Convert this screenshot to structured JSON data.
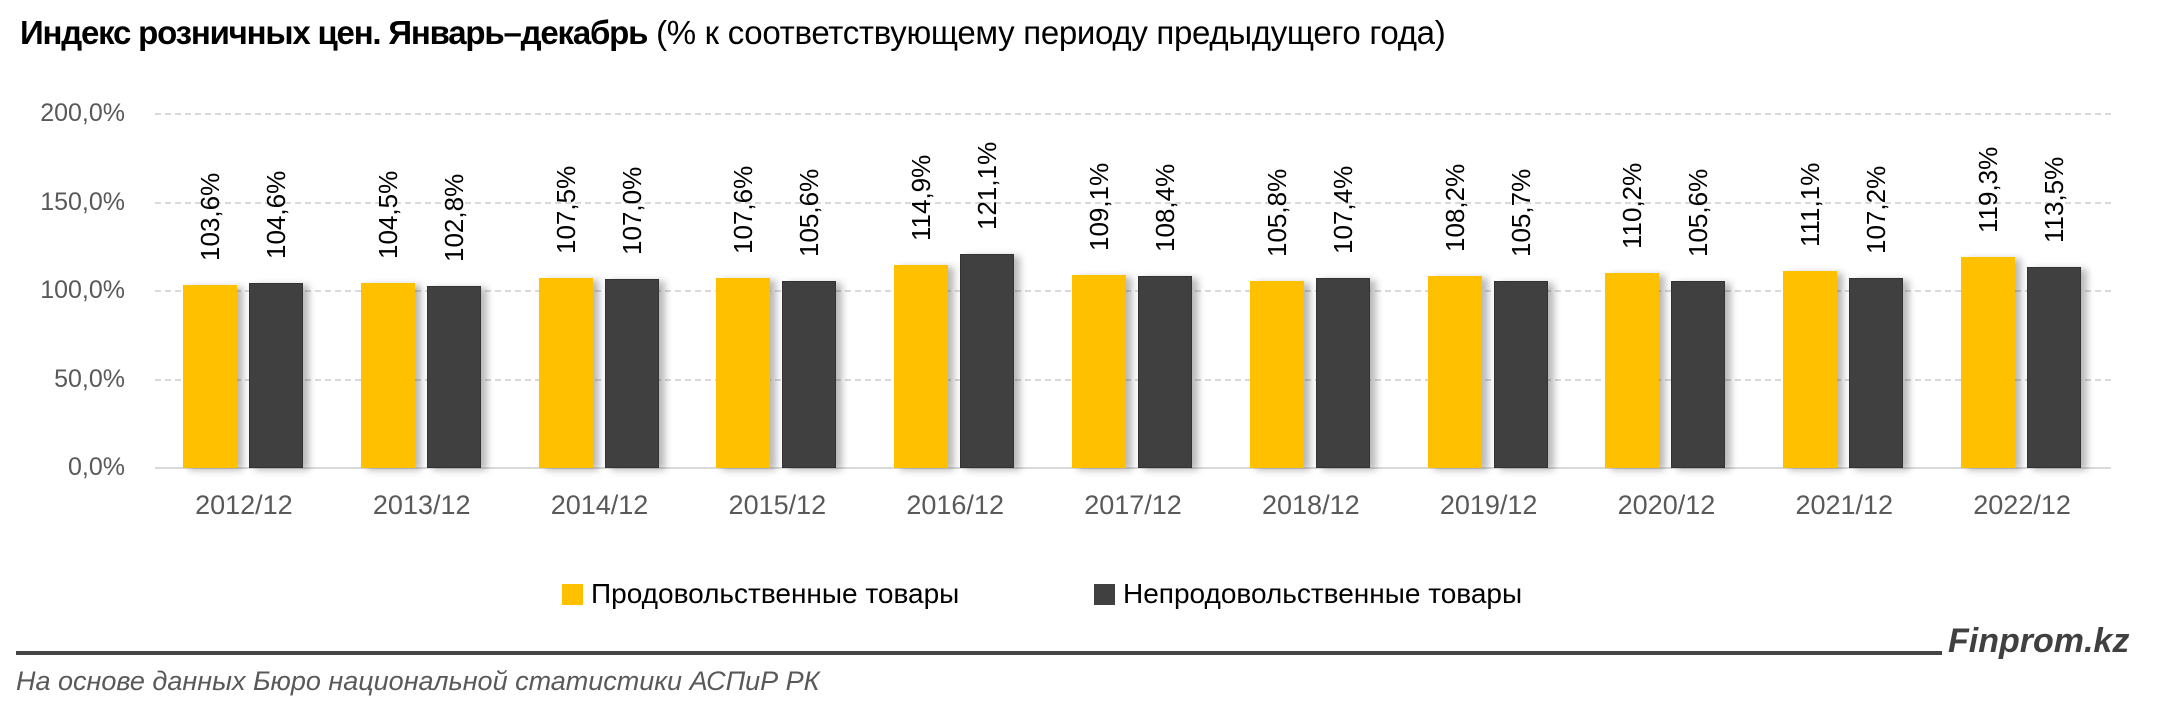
{
  "title": {
    "bold": "Индекс розничных цен. Январь–декабрь",
    "normal": " (% к соответствующему периоду предыдущего года)"
  },
  "colors": {
    "food": "#FFC000",
    "nonfood": "#404040",
    "grid": "#D9D9D9",
    "axis_text": "#595959"
  },
  "chart_data": {
    "type": "bar",
    "title": "Индекс розничных цен. Январь–декабрь (% к соответствующему периоду предыдущего года)",
    "xlabel": "",
    "ylabel": "",
    "ylim": [
      0,
      200
    ],
    "yticks": [
      "0,0%",
      "50,0%",
      "100,0%",
      "150,0%",
      "200,0%"
    ],
    "grid": true,
    "legend_position": "bottom",
    "categories": [
      "2012/12",
      "2013/12",
      "2014/12",
      "2015/12",
      "2016/12",
      "2017/12",
      "2018/12",
      "2019/12",
      "2020/12",
      "2021/12",
      "2022/12"
    ],
    "series": [
      {
        "name": "Продовольственные товары",
        "color": "#FFC000",
        "values": [
          103.6,
          104.5,
          107.5,
          107.6,
          114.9,
          109.1,
          105.8,
          108.2,
          110.2,
          111.1,
          119.3
        ],
        "labels": [
          "103,6%",
          "104,5%",
          "107,5%",
          "107,6%",
          "114,9%",
          "109,1%",
          "105,8%",
          "108,2%",
          "110,2%",
          "111,1%",
          "119,3%"
        ]
      },
      {
        "name": "Непродовольственные товары",
        "color": "#404040",
        "values": [
          104.6,
          102.8,
          107.0,
          105.6,
          121.1,
          108.4,
          107.4,
          105.7,
          105.6,
          107.2,
          113.5
        ],
        "labels": [
          "104,6%",
          "102,8%",
          "107,0%",
          "105,6%",
          "121,1%",
          "108,4%",
          "107,4%",
          "105,7%",
          "105,6%",
          "107,2%",
          "113,5%"
        ]
      }
    ]
  },
  "legend": {
    "items": [
      {
        "label": "Продовольственные товары",
        "color": "#FFC000"
      },
      {
        "label": "Непродовольственные товары",
        "color": "#404040"
      }
    ]
  },
  "footer": {
    "brand": "Finprom.kz",
    "source": "На основе данных Бюро национальной статистики АСПиР РК"
  }
}
